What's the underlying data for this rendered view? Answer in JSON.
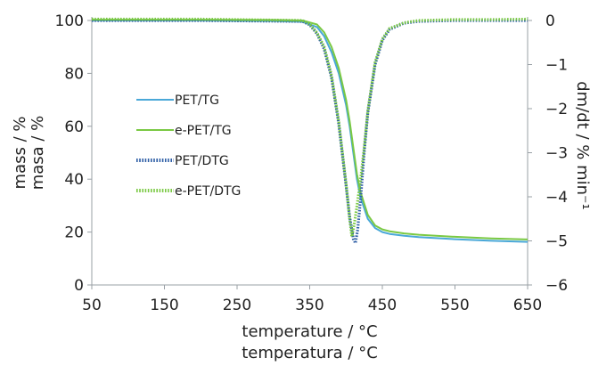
{
  "chart_data": {
    "type": "line",
    "xlabel": [
      "temperature / °C",
      "temperatura / °C"
    ],
    "ylabel_left": [
      "mass / %",
      "masa / %"
    ],
    "ylabel_right": "dm/dt / % min⁻¹",
    "xlim": [
      50,
      650
    ],
    "ylim_left": [
      0,
      100
    ],
    "ylim_right": [
      -6,
      0
    ],
    "x_ticks": [
      50,
      150,
      250,
      350,
      450,
      550,
      650
    ],
    "y_ticks_left": [
      0,
      20,
      40,
      60,
      80,
      100
    ],
    "y_ticks_right": [
      0,
      -1,
      -2,
      -3,
      -4,
      -5,
      -6
    ],
    "grid": false,
    "legend_position": "left",
    "series": [
      {
        "name": "PET/TG",
        "axis": "left",
        "style": "line",
        "color": "#4aa8d8",
        "x": [
          50,
          100,
          200,
          300,
          340,
          360,
          370,
          380,
          390,
          400,
          405,
          410,
          415,
          420,
          430,
          440,
          450,
          460,
          480,
          500,
          550,
          600,
          650
        ],
        "y": [
          100,
          100,
          100,
          99.8,
          99.5,
          97.5,
          94,
          88,
          80,
          68,
          60,
          50,
          40,
          33,
          25,
          21.5,
          20,
          19.3,
          18.6,
          18.1,
          17.3,
          16.7,
          16.3
        ]
      },
      {
        "name": "e-PET/TG",
        "axis": "left",
        "style": "line",
        "color": "#7ac943",
        "x": [
          50,
          100,
          200,
          300,
          340,
          360,
          370,
          380,
          390,
          400,
          405,
          410,
          415,
          420,
          430,
          440,
          450,
          460,
          480,
          500,
          550,
          600,
          650
        ],
        "y": [
          100.3,
          100.3,
          100.3,
          100.2,
          100,
          98.5,
          95.5,
          90,
          82,
          70,
          62,
          52,
          42,
          35,
          26.5,
          22.5,
          21,
          20.3,
          19.5,
          19,
          18.2,
          17.6,
          17.2
        ]
      },
      {
        "name": "PET/DTG",
        "axis": "right",
        "style": "dotted",
        "color": "#2f5fa6",
        "x": [
          50,
          200,
          340,
          350,
          360,
          370,
          380,
          390,
          400,
          405,
          410,
          413,
          416,
          420,
          425,
          430,
          440,
          450,
          460,
          480,
          500,
          550,
          600,
          650
        ],
        "y": [
          0,
          0,
          -0.02,
          -0.1,
          -0.3,
          -0.65,
          -1.3,
          -2.35,
          -3.75,
          -4.45,
          -4.95,
          -5.05,
          -4.75,
          -4.05,
          -3.0,
          -2.1,
          -1.0,
          -0.45,
          -0.2,
          -0.06,
          -0.02,
          0,
          0,
          0
        ]
      },
      {
        "name": "e-PET/DTG",
        "axis": "right",
        "style": "dotted",
        "color": "#7ac943",
        "x": [
          50,
          200,
          340,
          350,
          360,
          370,
          380,
          390,
          400,
          405,
          408,
          410,
          413,
          416,
          420,
          425,
          430,
          440,
          450,
          460,
          480,
          500,
          550,
          600,
          650
        ],
        "y": [
          0.03,
          0.03,
          0,
          -0.08,
          -0.28,
          -0.6,
          -1.25,
          -2.3,
          -3.7,
          -4.5,
          -4.9,
          -4.75,
          -4.45,
          -4.1,
          -3.6,
          -2.9,
          -2.05,
          -0.95,
          -0.42,
          -0.18,
          -0.05,
          0,
          0.02,
          0.02,
          0.03
        ]
      }
    ]
  }
}
